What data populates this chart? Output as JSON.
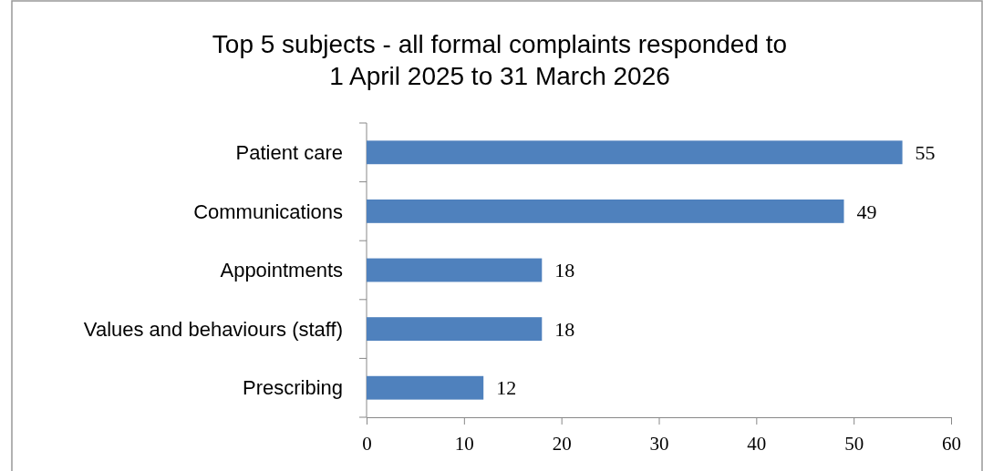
{
  "chart_data": {
    "type": "bar",
    "orientation": "horizontal",
    "title": "Top 5 subjects - all formal complaints responded to\n1 April 2025 to 31 March 2026",
    "categories": [
      "Patient care",
      "Communications",
      "Appointments",
      "Values and behaviours (staff)",
      "Prescribing"
    ],
    "values": [
      55,
      49,
      18,
      18,
      12
    ],
    "color": "#4f81bd",
    "data_labels": true,
    "xlim": [
      0,
      60
    ],
    "xticks": [
      0,
      10,
      20,
      30,
      40,
      50,
      60
    ],
    "grid": false
  }
}
